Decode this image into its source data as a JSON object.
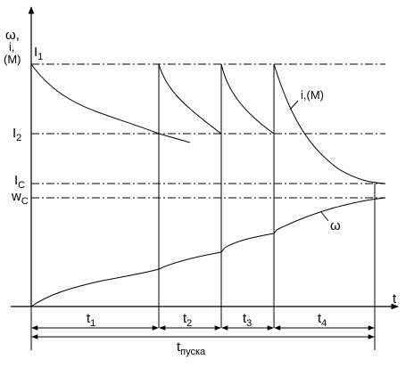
{
  "axis": {
    "y_label_main": "ω",
    "y_label_comma": ",",
    "y_label_current": "i,",
    "y_label_moment": "(M)",
    "x_label": "t"
  },
  "levels": {
    "I1": {
      "letter": "I",
      "sub": "1"
    },
    "I2": {
      "letter": "I",
      "sub": "2"
    },
    "Ic": {
      "letter": "I",
      "sub": "C"
    },
    "wc": {
      "letter": "w",
      "sub": "C"
    }
  },
  "curves": {
    "current_label": "i,(M)",
    "speed_label": "ω"
  },
  "intervals": [
    {
      "letter": "t",
      "sub": "1"
    },
    {
      "letter": "t",
      "sub": "2"
    },
    {
      "letter": "t",
      "sub": "3"
    },
    {
      "letter": "t",
      "sub": "4"
    }
  ],
  "total": {
    "letter": "t",
    "sub": "пуска"
  }
}
